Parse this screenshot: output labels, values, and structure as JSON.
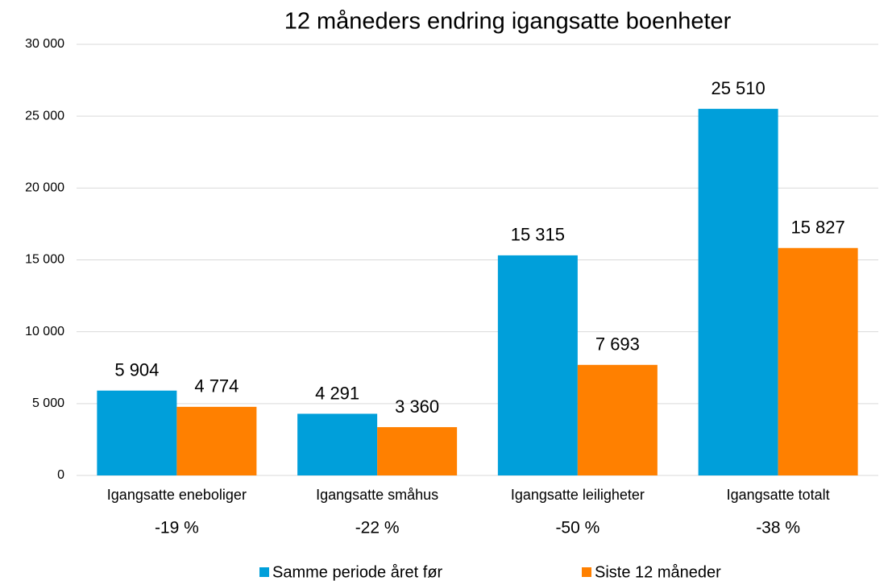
{
  "chart_data": {
    "type": "bar",
    "title": "12 måneders endring igangsatte boenheter",
    "categories": [
      "Igangsatte eneboliger",
      "Igangsatte småhus",
      "Igangsatte leiligheter",
      "Igangsatte  totalt"
    ],
    "annotations": [
      "-19 %",
      "-22 %",
      "-50 %",
      "-38 %"
    ],
    "series": [
      {
        "name": "Samme periode året før",
        "color": "#009fda",
        "values": [
          5904,
          4291,
          15315,
          25510
        ],
        "value_labels": [
          "5 904",
          "4 291",
          "15 315",
          "25 510"
        ]
      },
      {
        "name": "Siste 12 måneder",
        "color": "#ff8000",
        "values": [
          4774,
          3360,
          7693,
          15827
        ],
        "value_labels": [
          "4 774",
          "3 360",
          "7 693",
          "15 827"
        ]
      }
    ],
    "ylim": [
      0,
      30000
    ],
    "yticks": [
      0,
      {
        "value": 5000,
        "label": "5 000"
      },
      {
        "value": 10000,
        "label": "10 000"
      },
      {
        "value": 15000,
        "label": "15 000"
      },
      {
        "value": 20000,
        "label": "20 000"
      },
      {
        "value": 25000,
        "label": "25 000"
      },
      {
        "value": 30000,
        "label": "30 000"
      }
    ],
    "grid": true,
    "legend": "bottom"
  }
}
